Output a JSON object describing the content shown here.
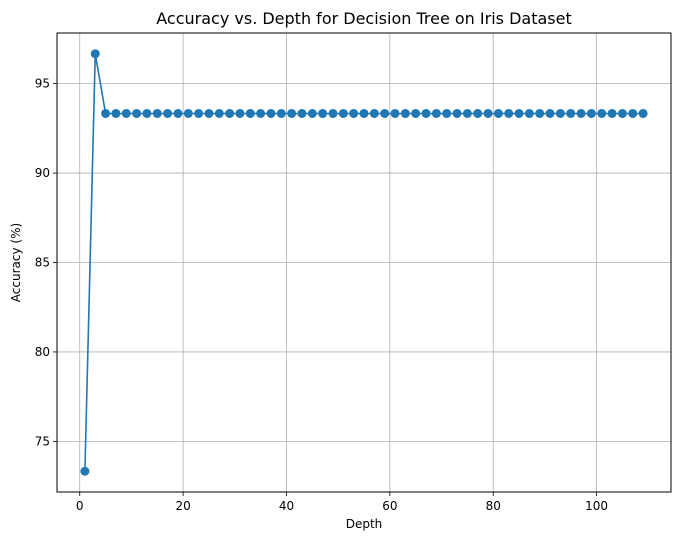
{
  "chart_data": {
    "type": "line",
    "title": "Accuracy vs. Depth for Decision Tree on Iris Dataset",
    "xlabel": "Depth",
    "ylabel": "Accuracy (%)",
    "xlim": [
      -4.4,
      114.4
    ],
    "ylim": [
      72.17,
      97.83
    ],
    "xticks": [
      0,
      20,
      40,
      60,
      80,
      100
    ],
    "yticks": [
      75,
      80,
      85,
      90,
      95
    ],
    "grid": true,
    "legend": "none",
    "series": [
      {
        "color": "#1f77b4",
        "marker": "circle",
        "x": [
          1,
          3,
          5,
          7,
          9,
          11,
          13,
          15,
          17,
          19,
          21,
          23,
          25,
          27,
          29,
          31,
          33,
          35,
          37,
          39,
          41,
          43,
          45,
          47,
          49,
          51,
          53,
          55,
          57,
          59,
          61,
          63,
          65,
          67,
          69,
          71,
          73,
          75,
          77,
          79,
          81,
          83,
          85,
          87,
          89,
          91,
          93,
          95,
          97,
          99,
          101,
          103,
          105,
          107,
          109
        ],
        "y": [
          73.33,
          96.67,
          93.33,
          93.33,
          93.33,
          93.33,
          93.33,
          93.33,
          93.33,
          93.33,
          93.33,
          93.33,
          93.33,
          93.33,
          93.33,
          93.33,
          93.33,
          93.33,
          93.33,
          93.33,
          93.33,
          93.33,
          93.33,
          93.33,
          93.33,
          93.33,
          93.33,
          93.33,
          93.33,
          93.33,
          93.33,
          93.33,
          93.33,
          93.33,
          93.33,
          93.33,
          93.33,
          93.33,
          93.33,
          93.33,
          93.33,
          93.33,
          93.33,
          93.33,
          93.33,
          93.33,
          93.33,
          93.33,
          93.33,
          93.33,
          93.33,
          93.33,
          93.33,
          93.33,
          93.33
        ]
      }
    ]
  }
}
